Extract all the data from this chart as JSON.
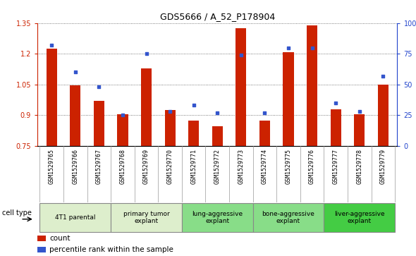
{
  "title": "GDS5666 / A_52_P178904",
  "samples": [
    "GSM1529765",
    "GSM1529766",
    "GSM1529767",
    "GSM1529768",
    "GSM1529769",
    "GSM1529770",
    "GSM1529771",
    "GSM1529772",
    "GSM1529773",
    "GSM1529774",
    "GSM1529775",
    "GSM1529776",
    "GSM1529777",
    "GSM1529778",
    "GSM1529779"
  ],
  "counts": [
    1.225,
    1.047,
    0.97,
    0.905,
    1.127,
    0.927,
    0.875,
    0.845,
    1.325,
    0.875,
    1.208,
    1.338,
    0.93,
    0.905,
    1.05
  ],
  "percentiles": [
    82,
    60,
    48,
    25,
    75,
    28,
    33,
    27,
    74,
    27,
    80,
    80,
    35,
    28,
    57
  ],
  "ylim_left": [
    0.75,
    1.35
  ],
  "ylim_right": [
    0,
    100
  ],
  "yticks_left": [
    0.75,
    0.9,
    1.05,
    1.2,
    1.35
  ],
  "yticks_right": [
    0,
    25,
    50,
    75,
    100
  ],
  "ytick_labels_right": [
    "0",
    "25",
    "50",
    "75",
    "100%"
  ],
  "bar_color": "#cc2200",
  "dot_color": "#3355cc",
  "title_fontsize": 9,
  "axis_label_fontsize": 7,
  "tick_label_fontsize": 6,
  "groups": [
    {
      "label": "4T1 parental",
      "indices": [
        0,
        1,
        2
      ],
      "color": "#ddeecc"
    },
    {
      "label": "primary tumor\nexplant",
      "indices": [
        3,
        4,
        5
      ],
      "color": "#ddeecc"
    },
    {
      "label": "lung-aggressive\nexplant",
      "indices": [
        6,
        7,
        8
      ],
      "color": "#88dd88"
    },
    {
      "label": "bone-aggressive\nexplant",
      "indices": [
        9,
        10,
        11
      ],
      "color": "#88dd88"
    },
    {
      "label": "liver-aggressive\nexplant",
      "indices": [
        12,
        13,
        14
      ],
      "color": "#44cc44"
    }
  ],
  "legend_count_label": "count",
  "legend_pct_label": "percentile rank within the sample",
  "cell_type_label": "cell type"
}
